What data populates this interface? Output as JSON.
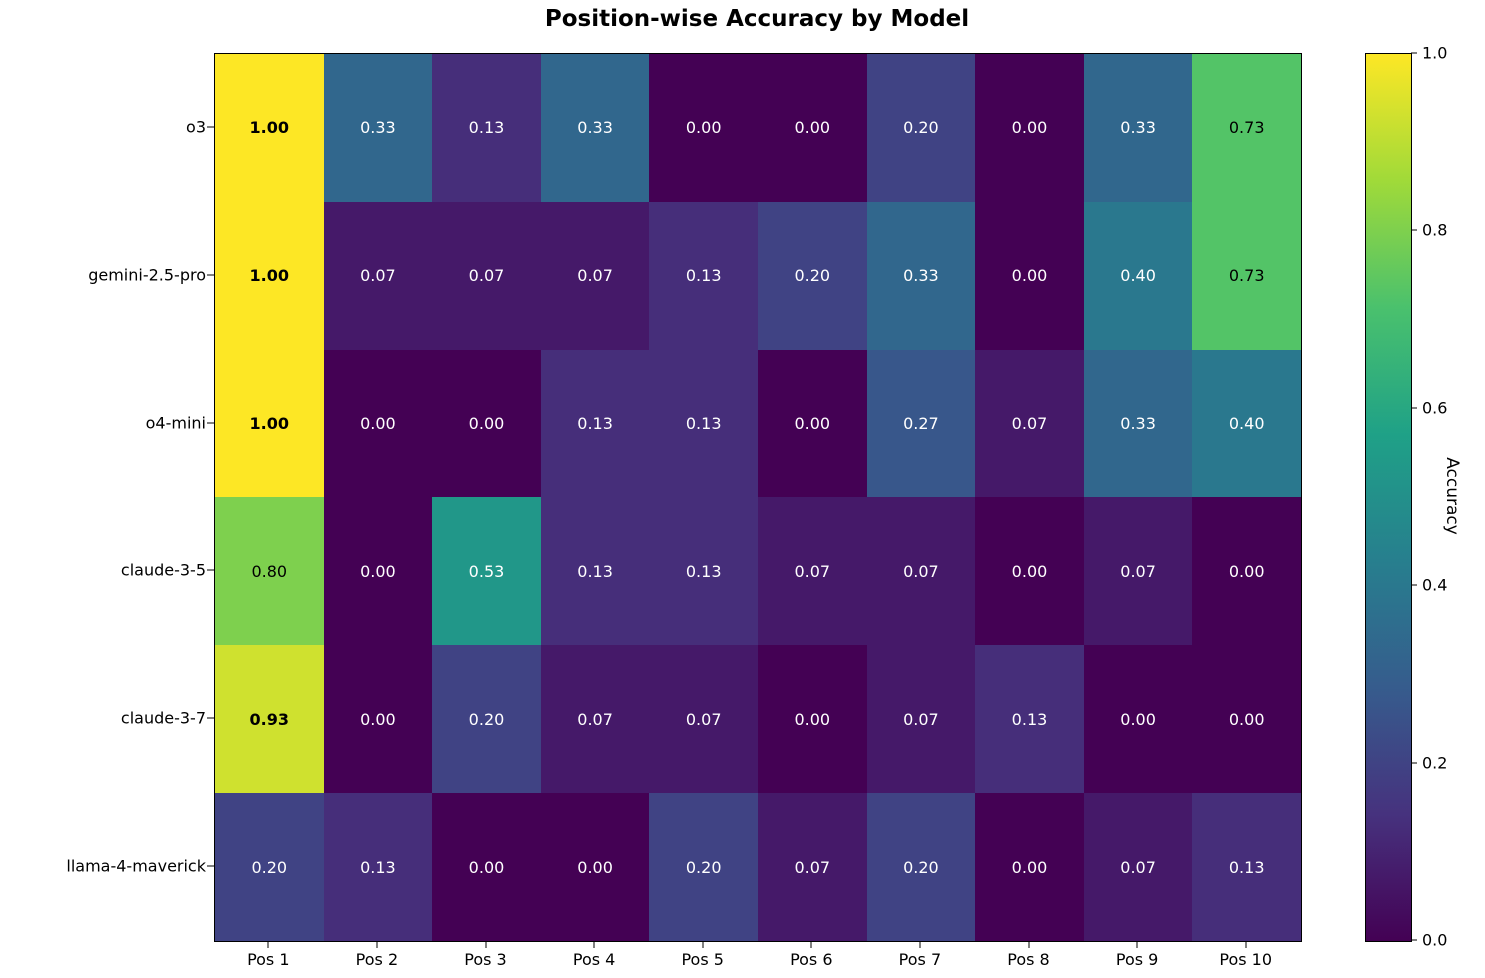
{
  "title": "Position-wise Accuracy by Model",
  "chart_data": {
    "type": "heatmap",
    "title": "Position-wise Accuracy by Model",
    "x_labels": [
      "Pos 1",
      "Pos 2",
      "Pos 3",
      "Pos 4",
      "Pos 5",
      "Pos 6",
      "Pos 7",
      "Pos 8",
      "Pos 9",
      "Pos 10"
    ],
    "y_labels": [
      "o3",
      "gemini-2.5-pro",
      "o4-mini",
      "claude-3-5",
      "claude-3-7",
      "llama-4-maverick"
    ],
    "values": [
      [
        1.0,
        0.33,
        0.13,
        0.33,
        0.0,
        0.0,
        0.2,
        0.0,
        0.33,
        0.73
      ],
      [
        1.0,
        0.07,
        0.07,
        0.07,
        0.13,
        0.2,
        0.33,
        0.0,
        0.4,
        0.73
      ],
      [
        1.0,
        0.0,
        0.0,
        0.13,
        0.13,
        0.0,
        0.27,
        0.07,
        0.33,
        0.4
      ],
      [
        0.8,
        0.0,
        0.53,
        0.13,
        0.13,
        0.07,
        0.07,
        0.0,
        0.07,
        0.0
      ],
      [
        0.93,
        0.0,
        0.2,
        0.07,
        0.07,
        0.0,
        0.07,
        0.13,
        0.0,
        0.0
      ],
      [
        0.2,
        0.13,
        0.0,
        0.0,
        0.2,
        0.07,
        0.2,
        0.0,
        0.07,
        0.13
      ]
    ],
    "value_format_decimals": 2,
    "grid": false,
    "colorbar": {
      "label": "Accuracy",
      "min": 0.0,
      "max": 1.0,
      "tick_values": [
        0.0,
        0.2,
        0.4,
        0.6,
        0.8,
        1.0
      ],
      "tick_labels": [
        "0.0",
        "0.2",
        "0.4",
        "0.6",
        "0.8",
        "1.0"
      ],
      "position": "right",
      "colormap": "viridis"
    },
    "colormap_anchors": [
      "#440154",
      "#46327e",
      "#365c8d",
      "#277f8e",
      "#1fa187",
      "#4ac16d",
      "#a0da39",
      "#fde725"
    ],
    "annotation_text_colors": {
      "dark_cells": "#ffffff",
      "bright_cells": "#000000",
      "bright_threshold": 0.6
    },
    "bold_threshold": 0.9
  }
}
